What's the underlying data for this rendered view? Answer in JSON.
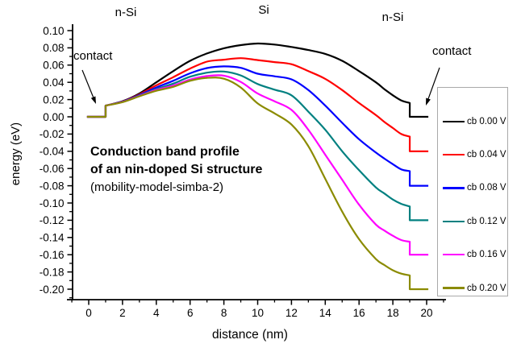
{
  "labels": {
    "region_left": "n-Si",
    "region_mid": "Si",
    "region_right": "n-Si",
    "contact_left": "contact",
    "contact_right": "contact"
  },
  "annotation": {
    "line1": "Conduction band profile",
    "line2": "of an nin-doped Si structure",
    "line3": "(mobility-model-simba-2)"
  },
  "colors": {
    "axis": "#000000",
    "background": "#ffffff",
    "legend_border": "#a9a9a9"
  },
  "chart_data": {
    "type": "line",
    "title": "Conduction band profile of an nin-doped Si structure (mobility-model-simba-2)",
    "xlabel": "distance (nm)",
    "ylabel": "energy (eV)",
    "xlim": [
      0,
      20
    ],
    "ylim": [
      -0.2,
      0.1
    ],
    "grid": false,
    "legend_position": "right",
    "x_major_ticks": [
      0,
      2,
      4,
      6,
      8,
      10,
      12,
      14,
      16,
      18,
      20
    ],
    "x_tick_labels": [
      "0",
      "2",
      "4",
      "6",
      "8",
      "10",
      "12",
      "14",
      "16",
      "18",
      "20"
    ],
    "x_minor_ticks": [
      -1,
      1,
      3,
      5,
      7,
      9,
      11,
      13,
      15,
      17,
      19,
      21
    ],
    "y_major_ticks": [
      0.1,
      0.08,
      0.06,
      0.04,
      0.02,
      0.0,
      -0.02,
      -0.04,
      -0.06,
      -0.08,
      -0.1,
      -0.12,
      -0.14,
      -0.16,
      -0.18,
      -0.2
    ],
    "y_tick_labels": [
      "0.10",
      "0.08",
      "0.06",
      "0.04",
      "0.02",
      "0.00",
      "-0.02",
      "-0.04",
      "-0.06",
      "-0.08",
      "-0.10",
      "-0.12",
      "-0.14",
      "-0.16",
      "-0.18",
      "-0.20"
    ],
    "y_minor_ticks": [
      0.09,
      0.07,
      0.05,
      0.03,
      0.01,
      -0.01,
      -0.03,
      -0.05,
      -0.07,
      -0.09,
      -0.11,
      -0.13,
      -0.15,
      -0.17,
      -0.19,
      -0.21
    ],
    "left_contact_step_x": 1,
    "right_contact_step_x": 19,
    "knots_x": [
      1,
      2,
      3,
      4,
      5,
      6,
      7,
      8,
      9,
      10,
      11,
      12,
      13,
      14,
      15,
      16,
      17,
      17.5,
      18,
      18.5,
      19
    ],
    "series": [
      {
        "name": "cb 0.00 V",
        "bias_V": 0.0,
        "color": "#000000",
        "start_level": 0.0,
        "end_level": 0.0,
        "knots_y": [
          0.013,
          0.018,
          0.027,
          0.04,
          0.053,
          0.065,
          0.0735,
          0.0795,
          0.0832,
          0.085,
          0.0838,
          0.081,
          0.0775,
          0.073,
          0.065,
          0.053,
          0.04,
          0.032,
          0.025,
          0.019,
          0.016
        ]
      },
      {
        "name": "cb 0.04 V",
        "bias_V": 0.04,
        "color": "#ff0000",
        "start_level": 0.0,
        "end_level": -0.04,
        "knots_y": [
          0.013,
          0.0178,
          0.026,
          0.0365,
          0.046,
          0.056,
          0.064,
          0.0663,
          0.068,
          0.0658,
          0.0635,
          0.061,
          0.053,
          0.044,
          0.031,
          0.016,
          0.002,
          -0.006,
          -0.013,
          -0.02,
          -0.023
        ]
      },
      {
        "name": "cb 0.08 V",
        "bias_V": 0.08,
        "color": "#0000ff",
        "start_level": 0.0,
        "end_level": -0.08,
        "knots_y": [
          0.013,
          0.0176,
          0.0252,
          0.034,
          0.0418,
          0.0505,
          0.0565,
          0.0585,
          0.0568,
          0.05,
          0.047,
          0.0435,
          0.031,
          0.013,
          -0.007,
          -0.026,
          -0.0415,
          -0.0485,
          -0.055,
          -0.061,
          -0.063
        ]
      },
      {
        "name": "cb 0.12 V",
        "bias_V": 0.12,
        "color": "#008080",
        "start_level": 0.0,
        "end_level": -0.12,
        "knots_y": [
          0.013,
          0.0174,
          0.0246,
          0.0322,
          0.0385,
          0.0465,
          0.0512,
          0.0525,
          0.048,
          0.038,
          0.0315,
          0.025,
          0.006,
          -0.015,
          -0.04,
          -0.062,
          -0.082,
          -0.089,
          -0.096,
          -0.101,
          -0.104
        ]
      },
      {
        "name": "cb 0.16 V",
        "bias_V": 0.16,
        "color": "#ff00ff",
        "start_level": 0.0,
        "end_level": -0.16,
        "knots_y": [
          0.013,
          0.0172,
          0.0242,
          0.0312,
          0.0362,
          0.0432,
          0.0473,
          0.0478,
          0.0405,
          0.027,
          0.018,
          0.008,
          -0.015,
          -0.044,
          -0.073,
          -0.102,
          -0.125,
          -0.132,
          -0.138,
          -0.143,
          -0.145
        ]
      },
      {
        "name": "cb 0.20 V",
        "bias_V": 0.2,
        "color": "#8b8b00",
        "start_level": 0.0,
        "end_level": -0.2,
        "knots_y": [
          0.013,
          0.017,
          0.0238,
          0.0302,
          0.0348,
          0.0418,
          0.0452,
          0.0442,
          0.034,
          0.0155,
          0.004,
          -0.009,
          -0.034,
          -0.072,
          -0.11,
          -0.142,
          -0.165,
          -0.172,
          -0.178,
          -0.182,
          -0.184
        ]
      }
    ]
  }
}
